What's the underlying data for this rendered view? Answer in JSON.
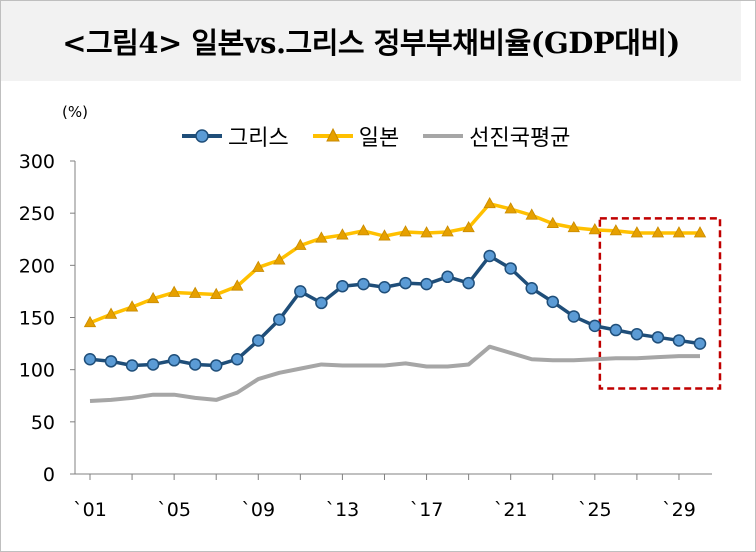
{
  "title": "<그림4> 일본vs.그리스 정부부채비율(GDP대비)",
  "unit_label": "(%)",
  "colors": {
    "greece": "#1f4e79",
    "greece_marker": "#5b9bd5",
    "japan": "#ffc000",
    "japan_marker": "#e6a000",
    "advanced": "#a6a6a6",
    "highlight_box": "#c00000",
    "title_bg": "#f2f2f2"
  },
  "chart_data": {
    "type": "line",
    "title": "<그림4> 일본vs.그리스 정부부채비율(GDP대비)",
    "xlabel": "",
    "ylabel": "(%)",
    "x": [
      2001,
      2002,
      2003,
      2004,
      2005,
      2006,
      2007,
      2008,
      2009,
      2010,
      2011,
      2012,
      2013,
      2014,
      2015,
      2016,
      2017,
      2018,
      2019,
      2020,
      2021,
      2022,
      2023,
      2024,
      2025,
      2026,
      2027,
      2028,
      2029,
      2030
    ],
    "xlim": [
      2001,
      2030
    ],
    "ylim": [
      0,
      300
    ],
    "x_ticks": [
      2001,
      2005,
      2009,
      2013,
      2017,
      2021,
      2025,
      2029
    ],
    "x_tick_labels": [
      "`01",
      "`05",
      "`09",
      "`13",
      "`17",
      "`21",
      "`25",
      "`29"
    ],
    "y_ticks": [
      0,
      50,
      100,
      150,
      200,
      250,
      300
    ],
    "y_tick_labels": [
      "0",
      "50",
      "100",
      "150",
      "200",
      "250",
      "300"
    ],
    "legend_position": "top",
    "grid": false,
    "highlight_range": [
      2026,
      2030
    ],
    "series": [
      {
        "name": "그리스",
        "color": "#1f4e79",
        "marker": "circle",
        "values": [
          110,
          108,
          104,
          105,
          109,
          105,
          104,
          110,
          128,
          148,
          175,
          164,
          180,
          182,
          179,
          183,
          182,
          189,
          183,
          209,
          197,
          178,
          165,
          151,
          142,
          138,
          134,
          131,
          128,
          125
        ]
      },
      {
        "name": "일본",
        "color": "#ffc000",
        "marker": "triangle",
        "values": [
          145,
          153,
          160,
          168,
          174,
          173,
          172,
          180,
          198,
          205,
          219,
          226,
          229,
          233,
          228,
          232,
          231,
          232,
          236,
          259,
          254,
          248,
          240,
          236,
          234,
          233,
          231,
          231,
          231,
          231
        ]
      },
      {
        "name": "선진국평균",
        "color": "#a6a6a6",
        "marker": "none",
        "values": [
          70,
          71,
          73,
          76,
          76,
          73,
          71,
          78,
          91,
          97,
          101,
          105,
          104,
          104,
          104,
          106,
          103,
          103,
          105,
          122,
          116,
          110,
          109,
          109,
          110,
          111,
          111,
          112,
          113,
          113
        ]
      }
    ]
  }
}
